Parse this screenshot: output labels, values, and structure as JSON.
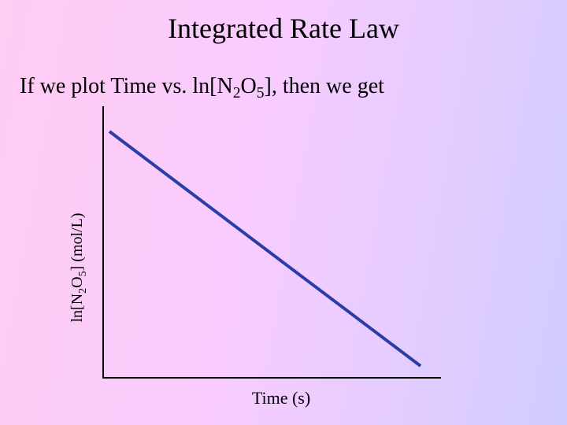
{
  "header": {
    "title": "Integrated Rate Law"
  },
  "subtitle": {
    "parts": [
      "If we plot Time vs. ln[N",
      "2",
      "O",
      "5",
      "], then we get"
    ]
  },
  "graph": {
    "x_label": "Time (s)",
    "y_label": {
      "parts": [
        "ln[N",
        "2",
        "O",
        "5",
        "] (mol/L)"
      ]
    }
  }
}
